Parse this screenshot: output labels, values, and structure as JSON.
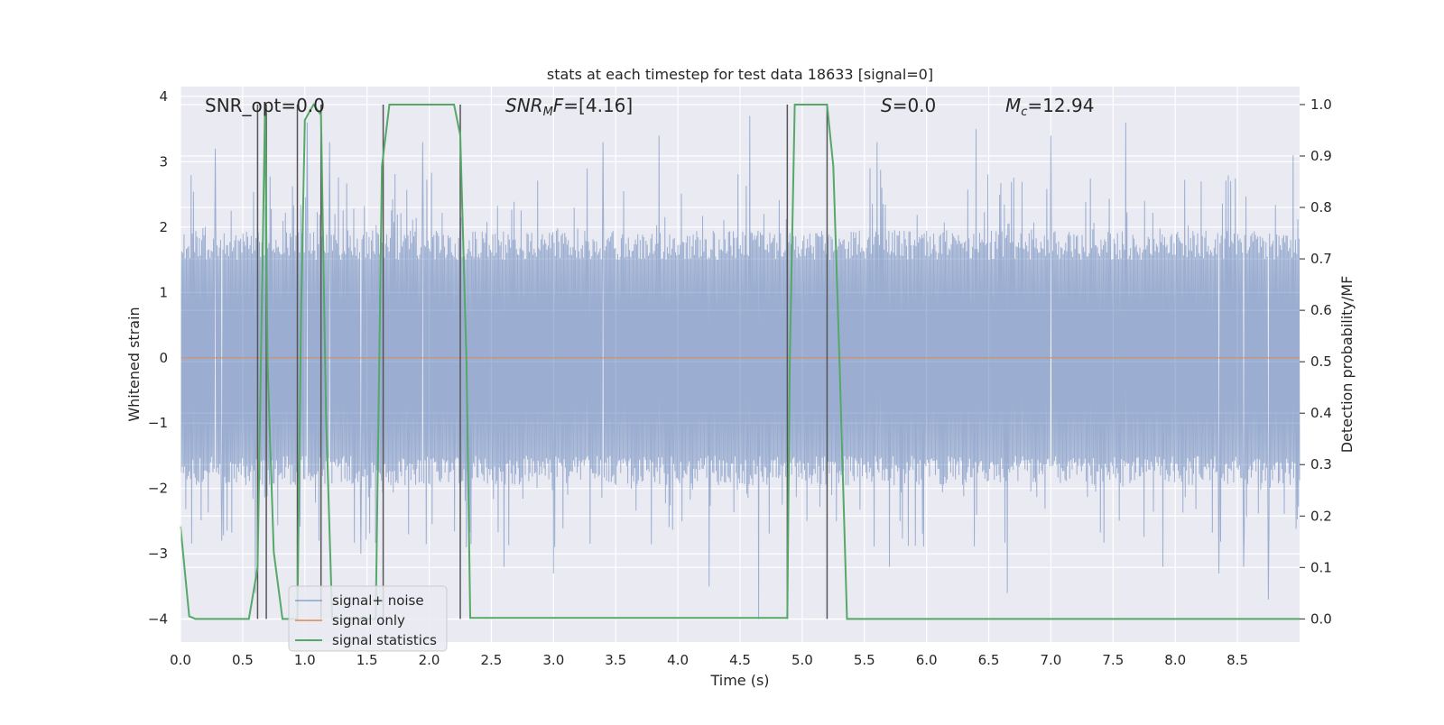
{
  "chart_data": {
    "type": "line",
    "title": "stats at each timestep for test data 18633 [signal=0]",
    "xlabel": "Time (s)",
    "ylabel": "Whitened strain",
    "ylabel_right": "Detection probability/MF",
    "xlim": [
      0.0,
      9.0
    ],
    "ylim": [
      -4.35,
      4.15
    ],
    "ylim_right": [
      -0.045,
      1.035
    ],
    "xticks": [
      0.0,
      0.5,
      1.0,
      1.5,
      2.0,
      2.5,
      3.0,
      3.5,
      4.0,
      4.5,
      5.0,
      5.5,
      6.0,
      6.5,
      7.0,
      7.5,
      8.0,
      8.5
    ],
    "xtick_labels": [
      "0.0",
      "0.5",
      "1.0",
      "1.5",
      "2.0",
      "2.5",
      "3.0",
      "3.5",
      "4.0",
      "4.5",
      "5.0",
      "5.5",
      "6.0",
      "6.5",
      "7.0",
      "7.5",
      "8.0",
      "8.5"
    ],
    "yticks": [
      -4,
      -3,
      -2,
      -1,
      0,
      1,
      2,
      3,
      4
    ],
    "ytick_labels": [
      "−4",
      "−3",
      "−2",
      "−1",
      "0",
      "1",
      "2",
      "3",
      "4"
    ],
    "yticks_right": [
      0.0,
      0.1,
      0.2,
      0.3,
      0.4,
      0.5,
      0.6,
      0.7,
      0.8,
      0.9,
      1.0
    ],
    "ytick_labels_right": [
      "0.0",
      "0.1",
      "0.2",
      "0.3",
      "0.4",
      "0.5",
      "0.6",
      "0.7",
      "0.8",
      "0.9",
      "1.0"
    ],
    "grid": true,
    "legend_position": "lower-left",
    "background": "#eaeaf2",
    "annotations": {
      "snr_opt": "SNR_opt=0.0",
      "snr_mf_main": "SNR",
      "snr_mf_sub": "M",
      "snr_mf_rest": "F=[4.16]",
      "s_main": "S",
      "s_rest": "=0.0",
      "mc_main": "M",
      "mc_sub": "c",
      "mc_rest": "=12.94"
    },
    "series": [
      {
        "name": "signal+ noise",
        "color": "#4c72b0",
        "axis": "left",
        "style": "noise",
        "t_start": 0.0,
        "t_end": 9.0,
        "typical_abs_max": 1.8,
        "extremes": [
          {
            "t": 0.28,
            "v": 3.2
          },
          {
            "t": 0.33,
            "v": -2.8
          },
          {
            "t": 0.6,
            "v": -3.6
          },
          {
            "t": 1.02,
            "v": 3.6
          },
          {
            "t": 1.2,
            "v": 3.3
          },
          {
            "t": 1.45,
            "v": -3.0
          },
          {
            "t": 1.95,
            "v": 3.3
          },
          {
            "t": 2.3,
            "v": -2.9
          },
          {
            "t": 2.6,
            "v": -3.2
          },
          {
            "t": 3.0,
            "v": -3.3
          },
          {
            "t": 3.4,
            "v": 3.3
          },
          {
            "t": 3.85,
            "v": 3.4
          },
          {
            "t": 4.25,
            "v": -3.5
          },
          {
            "t": 4.58,
            "v": 3.7
          },
          {
            "t": 4.65,
            "v": -4.0
          },
          {
            "t": 5.6,
            "v": 3.3
          },
          {
            "t": 5.7,
            "v": -3.2
          },
          {
            "t": 6.4,
            "v": 3.5
          },
          {
            "t": 6.65,
            "v": -3.6
          },
          {
            "t": 7.0,
            "v": 3.4
          },
          {
            "t": 7.6,
            "v": 3.6
          },
          {
            "t": 7.9,
            "v": -3.2
          },
          {
            "t": 8.35,
            "v": -3.3
          },
          {
            "t": 8.55,
            "v": -3.2
          },
          {
            "t": 8.75,
            "v": -3.7
          },
          {
            "t": 8.95,
            "v": 3.1
          }
        ]
      },
      {
        "name": "signal only",
        "color": "#dd8452",
        "axis": "left",
        "x": [
          0.0,
          9.0
        ],
        "y": [
          0.0,
          0.0
        ]
      },
      {
        "name": "signal statistics",
        "color": "#55a868",
        "axis": "right",
        "x": [
          0.0,
          0.07,
          0.12,
          0.55,
          0.62,
          0.68,
          0.7,
          0.75,
          0.82,
          0.94,
          0.97,
          1.0,
          1.07,
          1.13,
          1.17,
          1.22,
          1.57,
          1.62,
          1.68,
          2.2,
          2.25,
          2.3,
          2.33,
          4.88,
          4.9,
          4.94,
          5.2,
          5.25,
          5.3,
          5.36,
          9.0
        ],
        "y": [
          0.18,
          0.005,
          0.0,
          0.0,
          0.1,
          1.0,
          0.5,
          0.13,
          0.0,
          0.0,
          0.6,
          0.97,
          1.0,
          0.98,
          0.4,
          0.0,
          0.0,
          0.88,
          1.0,
          1.0,
          0.94,
          0.5,
          0.002,
          0.002,
          0.5,
          1.0,
          1.0,
          0.88,
          0.5,
          0.0,
          0.0
        ]
      }
    ],
    "vertical_lines": {
      "color": "#555555",
      "axis": "right",
      "y_range": [
        0.0,
        1.0
      ],
      "x": [
        0.62,
        0.69,
        0.94,
        1.13,
        1.63,
        2.25,
        4.88,
        5.2
      ]
    }
  }
}
